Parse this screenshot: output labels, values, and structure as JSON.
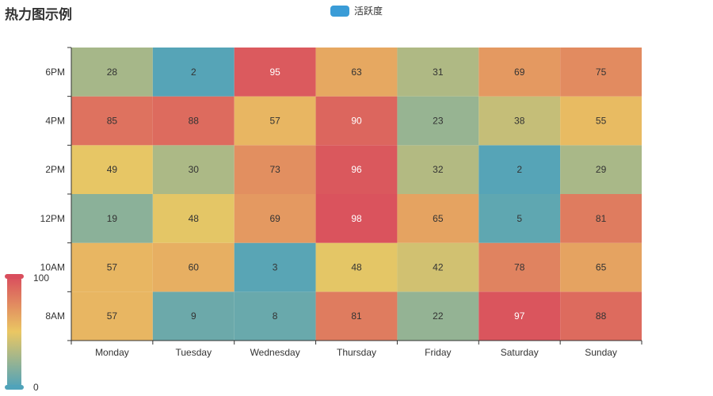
{
  "chart_data": {
    "type": "heatmap",
    "title": "热力图示例",
    "series_name": "活跃度",
    "legend_color": "#3a9cd7",
    "x_categories": [
      "Monday",
      "Tuesday",
      "Wednesday",
      "Thursday",
      "Friday",
      "Saturday",
      "Sunday"
    ],
    "y_categories": [
      "8AM",
      "10AM",
      "12PM",
      "2PM",
      "4PM",
      "6PM"
    ],
    "values": [
      [
        57,
        9,
        8,
        81,
        22,
        97,
        88
      ],
      [
        57,
        60,
        3,
        48,
        42,
        78,
        65
      ],
      [
        19,
        48,
        69,
        98,
        65,
        5,
        81
      ],
      [
        49,
        30,
        73,
        96,
        32,
        2,
        29
      ],
      [
        85,
        88,
        57,
        90,
        23,
        38,
        55
      ],
      [
        28,
        2,
        95,
        63,
        31,
        69,
        75
      ]
    ],
    "visual_map": {
      "min": 0,
      "max": 100,
      "min_label": "0",
      "max_label": "100",
      "colors": [
        "#50a3ba",
        "#eac763",
        "#d94e5d"
      ]
    }
  }
}
